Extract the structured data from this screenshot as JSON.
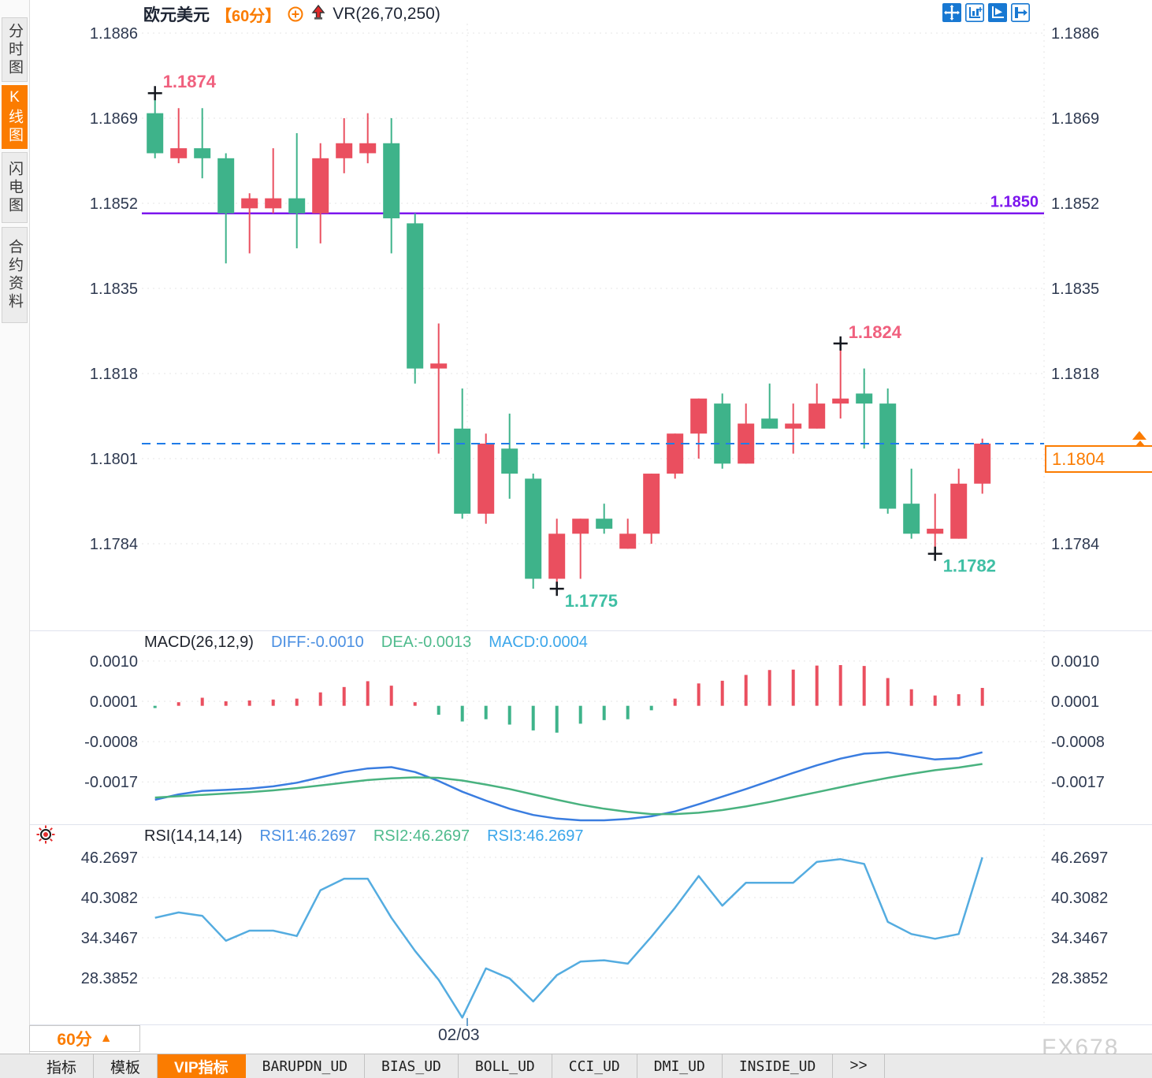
{
  "header": {
    "symbol": "欧元美元",
    "period_tag": "【60分】",
    "indicator_label": "VR(26,70,250)"
  },
  "toolbar": {
    "icons": [
      "pan-icon",
      "axis-chart-icon",
      "play-axis-icon",
      "export-icon"
    ]
  },
  "sidebar": {
    "items": [
      {
        "label": "分时图",
        "active": false
      },
      {
        "label": "K线图",
        "active": true
      },
      {
        "label": "闪电图",
        "active": false
      },
      {
        "label": "合约资料",
        "active": false
      }
    ]
  },
  "colors": {
    "up": "#ea4f5f",
    "down": "#3eb38a",
    "annotation_high": "#f0607e",
    "annotation_low": "#3fbfa4",
    "support_line": "#7c16ee",
    "last_price_line": "#1f7ce8",
    "accent_orange": "#fb7c00",
    "axis_text": "#2e3950",
    "grid": "#e6e6e6",
    "diff_line": "#3a7de0",
    "dea_line": "#49b27f",
    "rsi_line": "#54ace0"
  },
  "overlays": {
    "support_line": {
      "price": 1.185,
      "label": "1.1850"
    },
    "last_price": {
      "price": 1.1804,
      "label": "1.1804"
    }
  },
  "annotations": [
    {
      "text": "1.1874",
      "type": "high",
      "bar": 1,
      "price": 1.1874
    },
    {
      "text": "1.1824",
      "type": "high",
      "bar": 30,
      "price": 1.1824
    },
    {
      "text": "1.1775",
      "type": "low",
      "bar": 18,
      "price": 1.1775
    },
    {
      "text": "1.1782",
      "type": "low",
      "bar": 34,
      "price": 1.1782
    }
  ],
  "macd_header": {
    "title": "MACD(26,12,9)",
    "diff": "DIFF:-0.0010",
    "dea": "DEA:-0.0013",
    "macd": "MACD:0.0004"
  },
  "rsi_header": {
    "title": "RSI(14,14,14)",
    "rsi1": "RSI1:46.2697",
    "rsi2": "RSI2:46.2697",
    "rsi3": "RSI3:46.2697"
  },
  "bottom": {
    "period_label": "60分",
    "period_arrow": "▲",
    "date_label": "02/03",
    "watermark": "FX678",
    "tabs": [
      {
        "label": "指标",
        "active": false
      },
      {
        "label": "模板",
        "active": false
      },
      {
        "label": "VIP指标",
        "active": true
      },
      {
        "label": "BARUPDN_UD",
        "active": false
      },
      {
        "label": "BIAS_UD",
        "active": false
      },
      {
        "label": "BOLL_UD",
        "active": false
      },
      {
        "label": "CCI_UD",
        "active": false
      },
      {
        "label": "DMI_UD",
        "active": false
      },
      {
        "label": "INSIDE_UD",
        "active": false
      },
      {
        "label": ">>",
        "active": false
      }
    ]
  },
  "chart_data": [
    {
      "type": "candlestick",
      "title": "欧元美元 60分",
      "ylabel": "price",
      "y_ticks": [
        "1.1886",
        "1.1869",
        "1.1852",
        "1.1835",
        "1.1818",
        "1.1801",
        "1.1784"
      ],
      "x_date_label": "02/03",
      "legend_position": "none",
      "grid": true,
      "up_means": "red (CN convention)",
      "candles": [
        {
          "o": 1.187,
          "h": 1.1874,
          "l": 1.1861,
          "c": 1.1862
        },
        {
          "o": 1.1861,
          "h": 1.1871,
          "l": 1.186,
          "c": 1.1863
        },
        {
          "o": 1.1863,
          "h": 1.1871,
          "l": 1.1857,
          "c": 1.1861
        },
        {
          "o": 1.1861,
          "h": 1.1862,
          "l": 1.184,
          "c": 1.185
        },
        {
          "o": 1.1851,
          "h": 1.1854,
          "l": 1.1842,
          "c": 1.1853
        },
        {
          "o": 1.1851,
          "h": 1.1863,
          "l": 1.185,
          "c": 1.1853
        },
        {
          "o": 1.1853,
          "h": 1.1866,
          "l": 1.1843,
          "c": 1.185
        },
        {
          "o": 1.185,
          "h": 1.1864,
          "l": 1.1844,
          "c": 1.1861
        },
        {
          "o": 1.1861,
          "h": 1.1869,
          "l": 1.1858,
          "c": 1.1864
        },
        {
          "o": 1.1862,
          "h": 1.187,
          "l": 1.186,
          "c": 1.1864
        },
        {
          "o": 1.1864,
          "h": 1.1869,
          "l": 1.1842,
          "c": 1.1849
        },
        {
          "o": 1.1848,
          "h": 1.185,
          "l": 1.1816,
          "c": 1.1819
        },
        {
          "o": 1.1819,
          "h": 1.1828,
          "l": 1.1802,
          "c": 1.182
        },
        {
          "o": 1.1807,
          "h": 1.1815,
          "l": 1.1789,
          "c": 1.179
        },
        {
          "o": 1.179,
          "h": 1.1806,
          "l": 1.1788,
          "c": 1.1804
        },
        {
          "o": 1.1803,
          "h": 1.181,
          "l": 1.1793,
          "c": 1.1798
        },
        {
          "o": 1.1797,
          "h": 1.1798,
          "l": 1.1775,
          "c": 1.1777
        },
        {
          "o": 1.1777,
          "h": 1.1789,
          "l": 1.1775,
          "c": 1.1786
        },
        {
          "o": 1.1786,
          "h": 1.1789,
          "l": 1.1777,
          "c": 1.1789
        },
        {
          "o": 1.1789,
          "h": 1.1792,
          "l": 1.1786,
          "c": 1.1787
        },
        {
          "o": 1.1783,
          "h": 1.1789,
          "l": 1.1783,
          "c": 1.1786
        },
        {
          "o": 1.1786,
          "h": 1.1798,
          "l": 1.1784,
          "c": 1.1798
        },
        {
          "o": 1.1798,
          "h": 1.1806,
          "l": 1.1797,
          "c": 1.1806
        },
        {
          "o": 1.1806,
          "h": 1.1813,
          "l": 1.1801,
          "c": 1.1813
        },
        {
          "o": 1.1812,
          "h": 1.1814,
          "l": 1.1799,
          "c": 1.18
        },
        {
          "o": 1.18,
          "h": 1.1812,
          "l": 1.18,
          "c": 1.1808
        },
        {
          "o": 1.1809,
          "h": 1.1816,
          "l": 1.1807,
          "c": 1.1807
        },
        {
          "o": 1.1807,
          "h": 1.1812,
          "l": 1.1802,
          "c": 1.1808
        },
        {
          "o": 1.1807,
          "h": 1.1816,
          "l": 1.1807,
          "c": 1.1812
        },
        {
          "o": 1.1812,
          "h": 1.1824,
          "l": 1.1809,
          "c": 1.1813
        },
        {
          "o": 1.1814,
          "h": 1.1819,
          "l": 1.1803,
          "c": 1.1812
        },
        {
          "o": 1.1812,
          "h": 1.1815,
          "l": 1.179,
          "c": 1.1791
        },
        {
          "o": 1.1792,
          "h": 1.1799,
          "l": 1.1785,
          "c": 1.1786
        },
        {
          "o": 1.1786,
          "h": 1.1794,
          "l": 1.1782,
          "c": 1.1787
        },
        {
          "o": 1.1785,
          "h": 1.1799,
          "l": 1.1785,
          "c": 1.1796
        },
        {
          "o": 1.1796,
          "h": 1.1805,
          "l": 1.1794,
          "c": 1.1804
        }
      ]
    },
    {
      "type": "bar",
      "title": "MACD(26,12,9)",
      "y_ticks": [
        "0.0010",
        "0.0001",
        "-0.0008",
        "-0.0017"
      ],
      "histogram": [
        -5e-05,
        8e-05,
        0.00018,
        0.0001,
        0.00012,
        0.00014,
        0.00016,
        0.0003,
        0.00042,
        0.00055,
        0.00045,
        8e-05,
        -0.0002,
        -0.00035,
        -0.0003,
        -0.00042,
        -0.00055,
        -0.0006,
        -0.0004,
        -0.00032,
        -0.0003,
        -0.0001,
        0.00016,
        0.0005,
        0.00056,
        0.00069,
        0.0008,
        0.00081,
        0.0009,
        0.00091,
        0.00089,
        0.00062,
        0.00037,
        0.00023,
        0.00026,
        0.0004
      ],
      "series": [
        {
          "name": "DIFF",
          "values": [
            -0.0021,
            -0.00198,
            -0.0019,
            -0.00188,
            -0.00185,
            -0.0018,
            -0.00172,
            -0.0016,
            -0.00148,
            -0.0014,
            -0.00137,
            -0.00148,
            -0.00168,
            -0.00192,
            -0.00212,
            -0.0023,
            -0.00244,
            -0.00252,
            -0.00256,
            -0.00256,
            -0.00253,
            -0.00247,
            -0.00236,
            -0.0022,
            -0.00203,
            -0.00186,
            -0.00168,
            -0.0015,
            -0.00133,
            -0.00118,
            -0.00107,
            -0.00104,
            -0.00112,
            -0.0012,
            -0.00117,
            -0.00104
          ]
        },
        {
          "name": "DEA",
          "values": [
            -0.00205,
            -0.00202,
            -0.00199,
            -0.00196,
            -0.00193,
            -0.00189,
            -0.00184,
            -0.00178,
            -0.00172,
            -0.00166,
            -0.00162,
            -0.0016,
            -0.00161,
            -0.00167,
            -0.00176,
            -0.00186,
            -0.00198,
            -0.0021,
            -0.00221,
            -0.0023,
            -0.00237,
            -0.00242,
            -0.00242,
            -0.00239,
            -0.00233,
            -0.00225,
            -0.00215,
            -0.00204,
            -0.00193,
            -0.00182,
            -0.00171,
            -0.00161,
            -0.00152,
            -0.00144,
            -0.00138,
            -0.0013
          ]
        }
      ]
    },
    {
      "type": "line",
      "title": "RSI(14,14,14)",
      "y_ticks": [
        "46.2697",
        "40.3082",
        "34.3467",
        "28.3852"
      ],
      "series": [
        {
          "name": "RSI",
          "values": [
            37.3,
            38.1,
            37.6,
            33.9,
            35.4,
            35.4,
            34.6,
            41.4,
            43.1,
            43.1,
            37.3,
            32.4,
            28.1,
            22.5,
            29.8,
            28.3,
            24.9,
            28.8,
            30.8,
            31.0,
            30.5,
            34.5,
            38.8,
            43.5,
            39.1,
            42.5,
            42.5,
            42.5,
            45.6,
            46.0,
            45.3,
            36.7,
            34.9,
            34.2,
            34.9,
            46.2697
          ]
        }
      ]
    }
  ]
}
